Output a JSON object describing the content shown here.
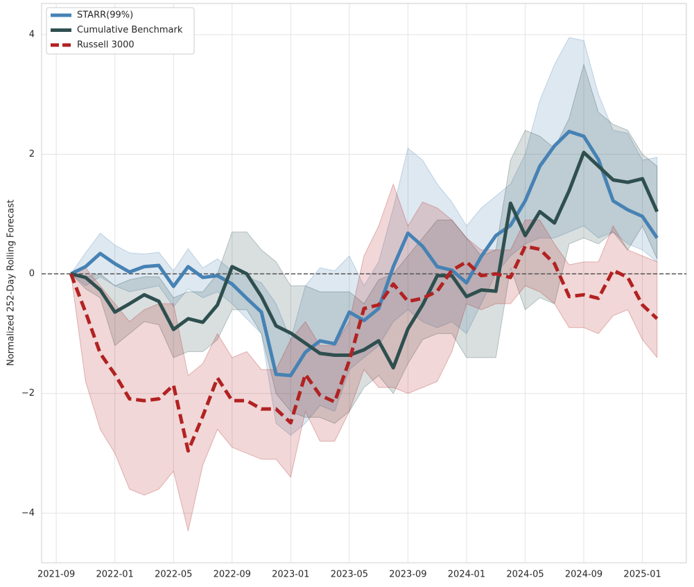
{
  "chart_data": {
    "type": "line",
    "ylabel": "Normalized 252-Day Rolling Forecast",
    "x": [
      "2021-10",
      "2021-11",
      "2021-12",
      "2022-01",
      "2022-02",
      "2022-03",
      "2022-04",
      "2022-05",
      "2022-06",
      "2022-07",
      "2022-08",
      "2022-09",
      "2022-10",
      "2022-11",
      "2022-12",
      "2023-01",
      "2023-02",
      "2023-03",
      "2023-04",
      "2023-05",
      "2023-06",
      "2023-07",
      "2023-08",
      "2023-09",
      "2023-10",
      "2023-11",
      "2023-12",
      "2024-01",
      "2024-02",
      "2024-03",
      "2024-04",
      "2024-05",
      "2024-06",
      "2024-07",
      "2024-08",
      "2024-09",
      "2024-10",
      "2024-11",
      "2024-12",
      "2025-01",
      "2025-02"
    ],
    "xlim": [
      "2021-08",
      "2025-04"
    ],
    "xticks": [
      "2021-09",
      "2022-01",
      "2022-05",
      "2022-09",
      "2023-01",
      "2023-05",
      "2023-09",
      "2024-01",
      "2024-05",
      "2024-09",
      "2025-01"
    ],
    "ylim": [
      -4.83,
      4.52
    ],
    "yticks": [
      {
        "value": -4,
        "label": "−4"
      },
      {
        "value": -2,
        "label": "−2"
      },
      0,
      2,
      4
    ],
    "grid": true,
    "hline": 0,
    "legend": "upper left",
    "series": [
      {
        "name": "STARR(99%)",
        "color": "#4682b4",
        "dash": false,
        "values": [
          0,
          0.12,
          0.34,
          0.17,
          0.03,
          0.12,
          0.14,
          -0.21,
          0.12,
          -0.06,
          -0.03,
          -0.17,
          -0.41,
          -0.64,
          -1.68,
          -1.7,
          -1.31,
          -1.12,
          -1.17,
          -0.64,
          -0.78,
          -0.58,
          0.12,
          0.68,
          0.46,
          0.12,
          0.06,
          -0.15,
          0.29,
          0.64,
          0.81,
          1.22,
          1.8,
          2.14,
          2.38,
          2.3,
          1.91,
          1.22,
          1.07,
          0.96,
          0.6
        ],
        "upper": [
          0,
          0.35,
          0.68,
          0.48,
          0.35,
          0.33,
          0.36,
          0.05,
          0.42,
          0.1,
          0.25,
          0.05,
          -0.05,
          -0.15,
          -0.5,
          -1.1,
          -0.2,
          0.1,
          0.05,
          0.3,
          -0.2,
          0.2,
          1.1,
          2.1,
          1.9,
          1.5,
          1.2,
          0.8,
          1.1,
          1.3,
          1.5,
          2.0,
          2.9,
          3.5,
          3.95,
          3.9,
          3.0,
          2.4,
          2.35,
          1.9,
          1.95
        ],
        "lower": [
          0,
          -0.2,
          -0.05,
          -0.2,
          -0.3,
          -0.25,
          -0.2,
          -0.55,
          -0.25,
          -0.4,
          -0.3,
          -0.5,
          -0.75,
          -1.0,
          -2.5,
          -2.7,
          -2.5,
          -2.2,
          -2.3,
          -1.6,
          -1.4,
          -1.2,
          -0.8,
          -0.6,
          -0.8,
          -0.9,
          -0.8,
          -1.0,
          -0.5,
          0,
          0.3,
          0.5,
          0.6,
          0.6,
          0.7,
          0.8,
          0.6,
          0.7,
          0.5,
          0.4,
          0.2
        ]
      },
      {
        "name": "Cumulative Benchmark",
        "color": "#2f4f4f",
        "dash": false,
        "values": [
          0,
          -0.06,
          -0.27,
          -0.64,
          -0.5,
          -0.35,
          -0.46,
          -0.93,
          -0.75,
          -0.81,
          -0.52,
          0.12,
          0,
          -0.38,
          -0.87,
          -0.99,
          -1.16,
          -1.33,
          -1.36,
          -1.36,
          -1.27,
          -1.12,
          -1.57,
          -0.92,
          -0.52,
          -0.03,
          -0.03,
          -0.38,
          -0.27,
          -0.29,
          1.18,
          0.64,
          1.04,
          0.85,
          1.39,
          2.03,
          1.8,
          1.57,
          1.53,
          1.59,
          1.04
        ],
        "upper": [
          0,
          -0.05,
          0,
          -0.2,
          -0.1,
          -0.05,
          -0.05,
          -0.4,
          -0.3,
          -0.3,
          0,
          0.7,
          0.7,
          0.4,
          0.2,
          -0.2,
          -0.2,
          -0.3,
          -0.3,
          -0.3,
          -0.5,
          -0.1,
          0,
          0.3,
          0.6,
          0.9,
          0.9,
          0.6,
          0.3,
          0.4,
          1.9,
          2.4,
          2.3,
          2.1,
          2.6,
          3.5,
          2.7,
          2.5,
          2.4,
          2.0,
          1.8
        ],
        "lower": [
          0,
          -0.25,
          -0.4,
          -1.2,
          -1.0,
          -0.8,
          -0.85,
          -1.4,
          -1.3,
          -1.3,
          -1.1,
          -0.6,
          -0.6,
          -1.0,
          -2.0,
          -2.3,
          -2.4,
          -2.4,
          -2.5,
          -2.3,
          -1.9,
          -1.7,
          -2.0,
          -1.5,
          -1.1,
          -1.0,
          -1.0,
          -1.4,
          -1.4,
          -1.4,
          0.1,
          -0.6,
          -0.4,
          -0.5,
          0.5,
          0.6,
          0.5,
          0.7,
          0.4,
          0.8,
          0.25
        ]
      },
      {
        "name": "Russell 3000",
        "color": "#b22222",
        "dash": true,
        "values": [
          0,
          -0.64,
          -1.33,
          -1.68,
          -2.09,
          -2.12,
          -2.09,
          -1.86,
          -2.96,
          -2.38,
          -1.74,
          -2.12,
          -2.12,
          -2.26,
          -2.26,
          -2.49,
          -1.68,
          -2.03,
          -2.14,
          -1.45,
          -0.58,
          -0.52,
          -0.17,
          -0.46,
          -0.41,
          -0.29,
          0.06,
          0.2,
          -0.03,
          0,
          -0.06,
          0.46,
          0.41,
          0.17,
          -0.38,
          -0.35,
          -0.41,
          0.06,
          -0.06,
          -0.52,
          -0.75
        ],
        "upper": [
          0,
          0.1,
          -0.2,
          -0.5,
          -0.8,
          -0.6,
          -0.5,
          -0.5,
          -1.7,
          -1.5,
          -1.0,
          -1.4,
          -1.3,
          -1.6,
          -1.6,
          -1.1,
          -0.8,
          -1.2,
          -1.2,
          -0.8,
          0.3,
          0.8,
          1.5,
          0.8,
          1.2,
          1.1,
          0.9,
          0.6,
          0.4,
          0.4,
          0.4,
          0.9,
          0.9,
          0.5,
          0.15,
          0.2,
          0.2,
          0.8,
          0.4,
          0.3,
          0.2
        ],
        "lower": [
          0,
          -1.8,
          -2.6,
          -3.0,
          -3.6,
          -3.7,
          -3.6,
          -3.3,
          -4.3,
          -3.2,
          -2.6,
          -2.9,
          -3.0,
          -3.1,
          -3.1,
          -3.4,
          -2.3,
          -2.8,
          -2.8,
          -2.3,
          -1.6,
          -1.9,
          -1.9,
          -2.0,
          -1.9,
          -1.8,
          -1.3,
          -0.5,
          -0.6,
          -0.5,
          -0.5,
          -0.2,
          -0.3,
          -0.5,
          -0.9,
          -0.9,
          -1.0,
          -0.7,
          -0.6,
          -1.1,
          -1.4
        ]
      }
    ]
  }
}
